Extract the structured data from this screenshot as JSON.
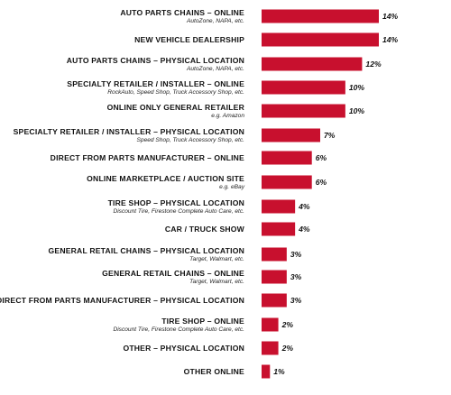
{
  "chart_data": {
    "type": "bar",
    "orientation": "horizontal",
    "categories": [
      "AUTO PARTS CHAINS – ONLINE",
      "NEW VEHICLE DEALERSHIP",
      "AUTO PARTS CHAINS – PHYSICAL LOCATION",
      "SPECIALTY RETAILER / INSTALLER – ONLINE",
      "ONLINE ONLY GENERAL RETAILER",
      "SPECIALTY RETAILER / INSTALLER – PHYSICAL LOCATION",
      "DIRECT FROM PARTS MANUFACTURER – ONLINE",
      "ONLINE MARKETPLACE / AUCTION SITE",
      "TIRE SHOP – PHYSICAL LOCATION",
      "CAR / TRUCK SHOW",
      "GENERAL RETAIL CHAINS – PHYSICAL LOCATION",
      "GENERAL RETAIL CHAINS – ONLINE",
      "DIRECT FROM PARTS MANUFACTURER – PHYSICAL LOCATION",
      "TIRE SHOP – ONLINE",
      "OTHER – PHYSICAL LOCATION",
      "OTHER ONLINE"
    ],
    "sublabels": [
      "AutoZone, NAPA, etc.",
      "",
      "AutoZone, NAPA, etc.",
      "RockAuto, Speed Shop, Truck Accessory Shop, etc.",
      "e.g. Amazon",
      "Speed Shop, Truck Accessory Shop, etc.",
      "",
      "e.g. eBay",
      "Discount Tire, Firestone Complete Auto Care, etc.",
      "",
      "Target, Walmart, etc.",
      "Target, Walmart, etc.",
      "",
      "Discount Tire, Firestone Complete Auto Care, etc.",
      "",
      ""
    ],
    "values": [
      14,
      14,
      12,
      10,
      10,
      7,
      6,
      6,
      4,
      4,
      3,
      3,
      3,
      2,
      2,
      1
    ],
    "value_labels": [
      "14%",
      "14%",
      "12%",
      "10%",
      "10%",
      "7%",
      "6%",
      "6%",
      "4%",
      "4%",
      "3%",
      "3%",
      "3%",
      "2%",
      "2%",
      "1%"
    ],
    "title": "",
    "xlabel": "",
    "ylabel": "",
    "xlim": [
      0,
      14
    ],
    "grid": false,
    "bar_color": "#c8102e"
  }
}
